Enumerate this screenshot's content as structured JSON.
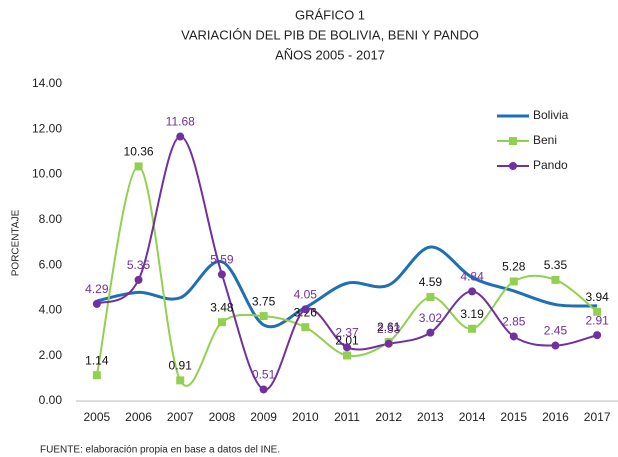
{
  "chart_data": {
    "type": "line",
    "title": [
      "GRÁFICO 1",
      "VARIACIÓN DEL PIB DE BOLIVIA, BENI Y PANDO",
      "AÑOS 2005 - 2017"
    ],
    "y_label": "PORCENTAJE",
    "source": "FUENTE: elaboración propia en base a datos del INE.",
    "categories": [
      "2005",
      "2006",
      "2007",
      "2008",
      "2009",
      "2010",
      "2011",
      "2012",
      "2013",
      "2014",
      "2015",
      "2016",
      "2017"
    ],
    "series": [
      {
        "name": "Bolivia",
        "color": "#1f6fb5",
        "values": [
          4.42,
          4.8,
          4.56,
          6.15,
          3.36,
          4.13,
          5.2,
          5.12,
          6.8,
          5.46,
          4.86,
          4.26,
          4.2
        ]
      },
      {
        "name": "Beni",
        "color": "#92d050",
        "values": [
          1.14,
          10.36,
          0.91,
          3.48,
          3.75,
          3.26,
          2.01,
          2.61,
          4.59,
          3.19,
          5.28,
          5.35,
          3.94
        ],
        "labels": true,
        "label_color": "#111111"
      },
      {
        "name": "Pando",
        "color": "#7030a0",
        "values": [
          4.29,
          5.35,
          11.68,
          5.59,
          0.51,
          4.05,
          2.37,
          2.53,
          3.02,
          4.84,
          2.85,
          2.45,
          2.91
        ],
        "labels": true,
        "label_color": "#7030a0"
      }
    ],
    "ylim": [
      0,
      14
    ],
    "yticks": [
      {
        "value": 0,
        "label": "0.00"
      },
      {
        "value": 2,
        "label": "2.00"
      },
      {
        "value": 4,
        "label": "4.00"
      },
      {
        "value": 6,
        "label": "6.00"
      },
      {
        "value": 8,
        "label": "8.00"
      },
      {
        "value": 10,
        "label": "10.00"
      },
      {
        "value": 12,
        "label": "12.00"
      },
      {
        "value": 14,
        "label": "14.00"
      }
    ],
    "legend": "upper right"
  }
}
